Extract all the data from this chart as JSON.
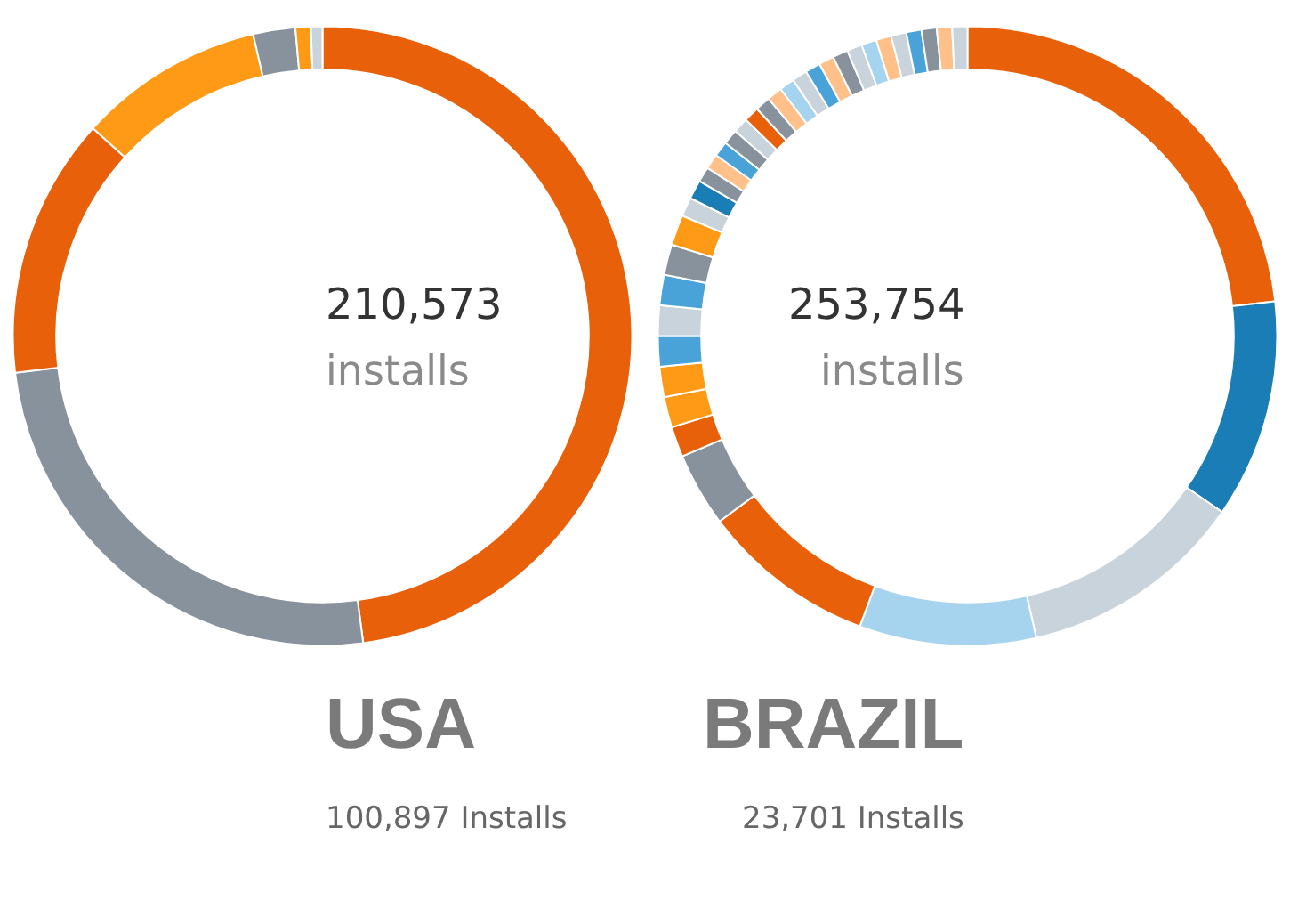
{
  "chart_data": [
    {
      "type": "donut",
      "title": "USA",
      "subtitle": "100,897 Installs",
      "annotations": [
        "210,573",
        "installs"
      ],
      "categories": [
        null,
        null,
        null,
        null,
        null,
        null,
        null
      ],
      "values": [
        47.9,
        25.2,
        13.6,
        9.7,
        2.2,
        0.8,
        0.6
      ],
      "colors": [
        "#e8600a",
        "#87929c",
        "#e8600a",
        "#ff9a16",
        "#87929c",
        "#ff9a16",
        "#c9d3dc"
      ],
      "legend": false
    },
    {
      "type": "donut",
      "title": "BRAZIL",
      "subtitle": "23,701 Installs",
      "annotations": [
        "253,754",
        "installs"
      ],
      "categories": [
        null,
        null,
        null,
        null,
        null,
        null,
        null,
        null,
        null,
        null,
        null,
        null,
        null,
        null,
        null,
        null,
        null,
        null,
        null,
        null,
        null,
        null,
        null,
        null,
        null,
        null,
        null,
        null,
        null,
        null,
        null,
        null,
        null,
        null,
        null,
        null,
        null
      ],
      "values": [
        23.4,
        11.5,
        11.9,
        9.3,
        9.2,
        3.9,
        1.6,
        1.6,
        1.6,
        1.6,
        1.6,
        1.6,
        1.6,
        1.6,
        1.0,
        1.0,
        0.8,
        0.8,
        0.8,
        0.8,
        0.8,
        0.8,
        0.8,
        0.8,
        0.8,
        0.8,
        0.8,
        0.8,
        0.8,
        0.8,
        0.8,
        0.8,
        0.8,
        0.8,
        0.8,
        0.8,
        0.8
      ],
      "colors": [
        "#e8600a",
        "#1a7db6",
        "#c9d3dc",
        "#a6d3ee",
        "#e8600a",
        "#87929c",
        "#e8600a",
        "#ff9a16",
        "#ff9a16",
        "#4aa3d8",
        "#c9d3dc",
        "#4aa3d8",
        "#87929c",
        "#ff9a16",
        "#c9d3dc",
        "#1a7db6",
        "#87929c",
        "#ffc08a",
        "#4aa3d8",
        "#87929c",
        "#c9d3dc",
        "#e8600a",
        "#87929c",
        "#ffc08a",
        "#a6d3ee",
        "#c9d3dc",
        "#4aa3d8",
        "#ffc08a",
        "#87929c",
        "#c9d3dc",
        "#a6d3ee",
        "#ffc08a",
        "#c9d3dc",
        "#4aa3d8",
        "#87929c",
        "#ffc08a",
        "#c9d3dc"
      ],
      "legend": false
    }
  ]
}
